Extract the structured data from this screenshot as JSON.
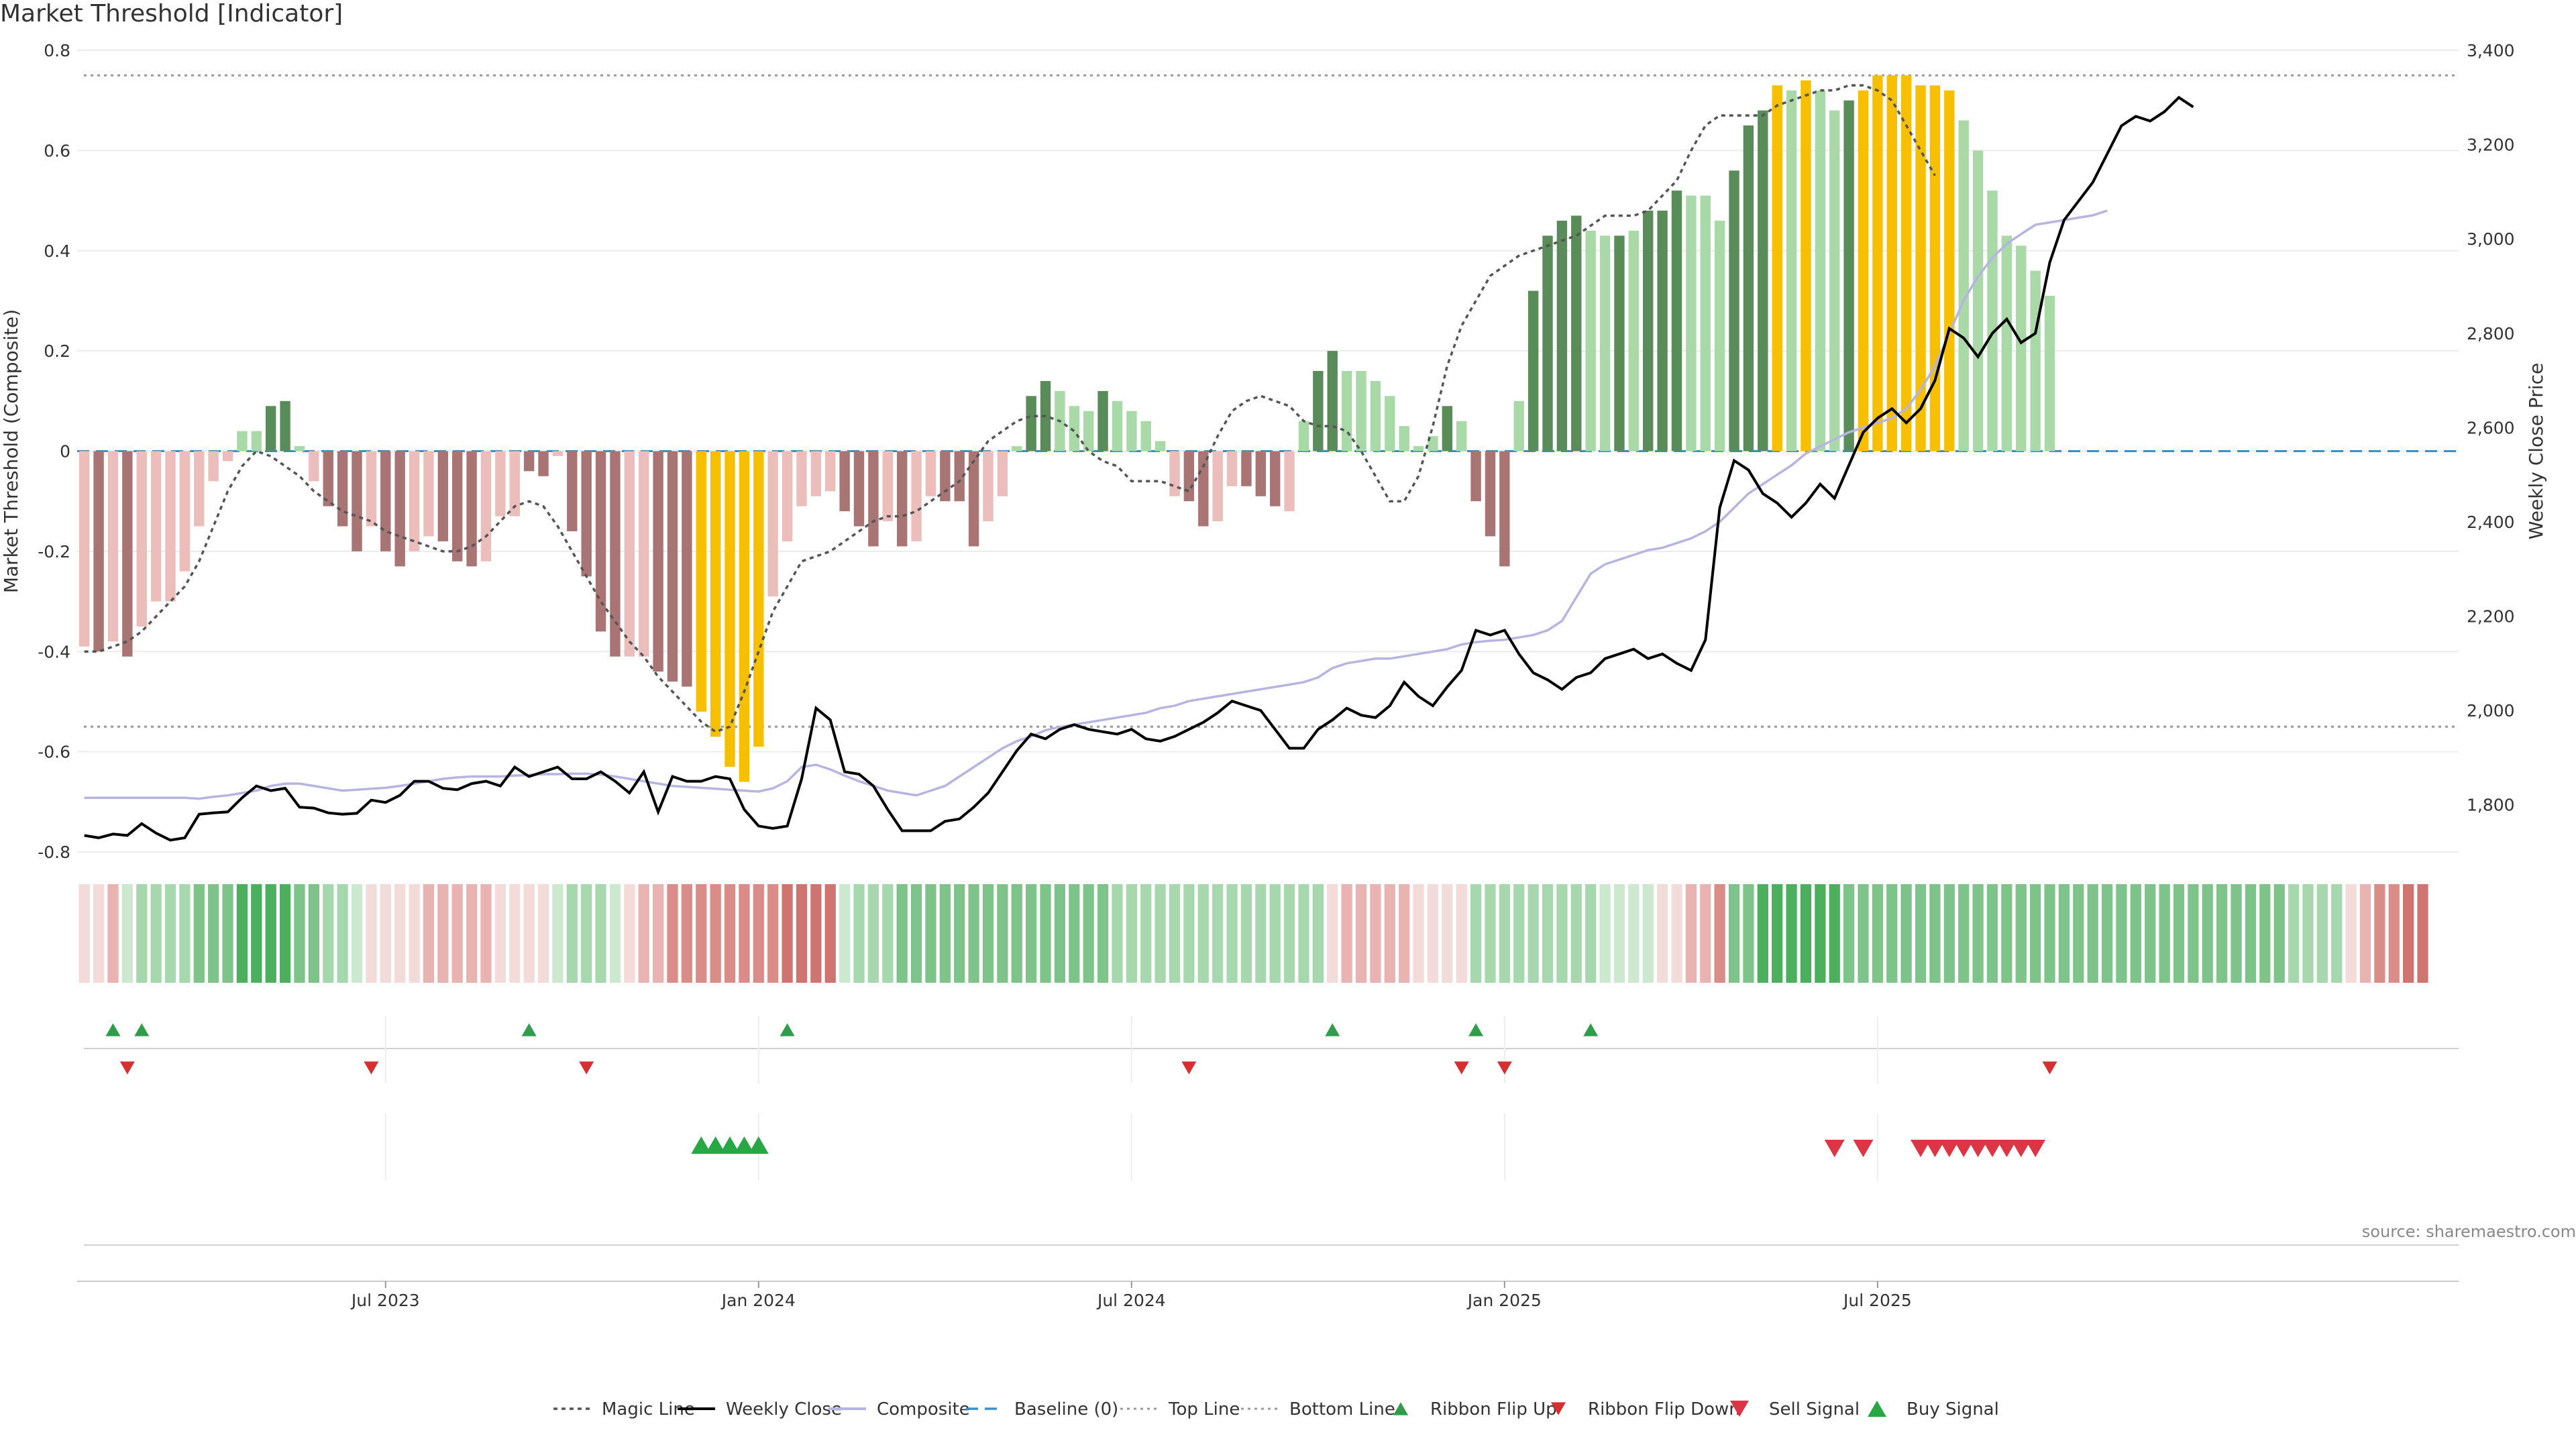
{
  "title": "Market Threshold [Indicator]",
  "source": "source: sharemaestro.com",
  "colors": {
    "strong_green": "#5a8c5a",
    "light_green": "#a9d9a6",
    "strong_red": "#a87474",
    "light_red": "#ecbebb",
    "gold": "#f6c000",
    "weekly_close": "#000000",
    "composite": "#b8b4e2",
    "magic": "#555555",
    "baseline": "#3b8fc4",
    "guide": "#999999",
    "up_marker": "#2e9e4a",
    "down_marker": "#d62f2f",
    "sell_marker": "#dc3545",
    "buy_marker": "#28a745"
  },
  "chart_data": {
    "type": "bar",
    "title": "Market Threshold [Indicator]",
    "ylabel": "Market Threshold (Composite)",
    "y2label": "Weekly Close Price",
    "ylim": [
      -0.8,
      0.8
    ],
    "y2lim": [
      1700,
      3400
    ],
    "y_ticks": [
      "0.8",
      "0.6",
      "0.4",
      "0.2",
      "0",
      "-0.2",
      "-0.4",
      "-0.6",
      "-0.8"
    ],
    "y2_ticks": [
      "3,400",
      "3,200",
      "3,000",
      "2,800",
      "2,600",
      "2,400",
      "2,200",
      "2,000",
      "1,800"
    ],
    "x_ticks": [
      {
        "label": "Jul 2023",
        "week": 21
      },
      {
        "label": "Jan 2024",
        "week": 47
      },
      {
        "label": "Jul 2024",
        "week": 73
      },
      {
        "label": "Jan 2025",
        "week": 99
      },
      {
        "label": "Jul 2025",
        "week": 125
      }
    ],
    "start_week": 0,
    "top_line": 0.75,
    "bottom_line": -0.55,
    "baseline": 0,
    "bars": [
      -0.39,
      -0.4,
      -0.38,
      -0.41,
      -0.35,
      -0.3,
      -0.3,
      -0.24,
      -0.15,
      -0.06,
      -0.02,
      0.04,
      0.04,
      0.09,
      0.1,
      0.01,
      -0.06,
      -0.11,
      -0.15,
      -0.2,
      -0.15,
      -0.2,
      -0.23,
      -0.2,
      -0.17,
      -0.18,
      -0.22,
      -0.23,
      -0.22,
      -0.13,
      -0.13,
      -0.04,
      -0.05,
      -0.01,
      -0.16,
      -0.25,
      -0.36,
      -0.41,
      -0.41,
      -0.41,
      -0.44,
      -0.46,
      -0.47,
      -0.52,
      -0.57,
      -0.63,
      -0.66,
      -0.59,
      -0.29,
      -0.18,
      -0.11,
      -0.09,
      -0.08,
      -0.12,
      -0.15,
      -0.19,
      -0.14,
      -0.19,
      -0.18,
      -0.09,
      -0.1,
      -0.1,
      -0.19,
      -0.14,
      -0.09,
      0.01,
      0.11,
      0.14,
      0.12,
      0.09,
      0.08,
      0.12,
      0.1,
      0.08,
      0.06,
      0.02,
      -0.09,
      -0.1,
      -0.15,
      -0.14,
      -0.07,
      -0.07,
      -0.09,
      -0.11,
      -0.12,
      0.06,
      0.16,
      0.2,
      0.16,
      0.16,
      0.14,
      0.11,
      0.05,
      0.01,
      0.03,
      0.09,
      0.06,
      -0.1,
      -0.17,
      -0.23,
      0.1,
      0.32,
      0.43,
      0.46,
      0.47,
      0.44,
      0.43,
      0.43,
      0.44,
      0.48,
      0.48,
      0.52,
      0.51,
      0.51,
      0.46,
      0.56,
      0.65,
      0.68,
      0.73,
      0.72,
      0.74,
      0.72,
      0.68,
      0.7,
      0.72,
      0.75,
      0.75,
      0.75,
      0.73,
      0.73,
      0.72,
      0.66,
      0.6,
      0.52,
      0.43,
      0.41,
      0.36,
      0.31
    ],
    "bar_colors": [
      "light_red",
      "strong_red",
      "light_red",
      "strong_red",
      "light_red",
      "light_red",
      "light_red",
      "light_red",
      "light_red",
      "light_red",
      "light_red",
      "light_green",
      "light_green",
      "strong_green",
      "strong_green",
      "light_green",
      "light_red",
      "strong_red",
      "strong_red",
      "strong_red",
      "light_red",
      "strong_red",
      "strong_red",
      "light_red",
      "light_red",
      "strong_red",
      "strong_red",
      "strong_red",
      "light_red",
      "light_red",
      "light_red",
      "strong_red",
      "strong_red",
      "light_red",
      "strong_red",
      "strong_red",
      "strong_red",
      "strong_red",
      "light_red",
      "light_red",
      "strong_red",
      "strong_red",
      "strong_red",
      "gold",
      "gold",
      "gold",
      "gold",
      "gold",
      "light_red",
      "light_red",
      "light_red",
      "light_red",
      "light_red",
      "strong_red",
      "strong_red",
      "strong_red",
      "light_red",
      "strong_red",
      "light_red",
      "light_red",
      "strong_red",
      "strong_red",
      "strong_red",
      "light_red",
      "light_red",
      "light_green",
      "strong_green",
      "strong_green",
      "light_green",
      "light_green",
      "light_green",
      "strong_green",
      "light_green",
      "light_green",
      "light_green",
      "light_green",
      "light_red",
      "strong_red",
      "strong_red",
      "light_red",
      "light_red",
      "strong_red",
      "strong_red",
      "strong_red",
      "light_red",
      "light_green",
      "strong_green",
      "strong_green",
      "light_green",
      "light_green",
      "light_green",
      "light_green",
      "light_green",
      "light_green",
      "light_green",
      "strong_green",
      "light_green",
      "strong_red",
      "strong_red",
      "strong_red",
      "light_green",
      "strong_green",
      "strong_green",
      "strong_green",
      "strong_green",
      "light_green",
      "light_green",
      "strong_green",
      "light_green",
      "strong_green",
      "strong_green",
      "strong_green",
      "light_green",
      "light_green",
      "light_green",
      "strong_green",
      "strong_green",
      "strong_green",
      "gold",
      "light_green",
      "gold",
      "light_green",
      "light_green",
      "strong_green",
      "gold",
      "gold",
      "gold",
      "gold",
      "gold",
      "gold",
      "gold",
      "light_green",
      "light_green",
      "light_green",
      "light_green",
      "light_green",
      "light_green",
      "light_green"
    ],
    "magic_line": [
      -0.4,
      -0.4,
      -0.39,
      -0.38,
      -0.36,
      -0.33,
      -0.3,
      -0.27,
      -0.22,
      -0.15,
      -0.08,
      -0.03,
      0.0,
      -0.01,
      -0.03,
      -0.05,
      -0.08,
      -0.1,
      -0.12,
      -0.13,
      -0.14,
      -0.16,
      -0.17,
      -0.18,
      -0.19,
      -0.2,
      -0.2,
      -0.19,
      -0.17,
      -0.14,
      -0.11,
      -0.1,
      -0.11,
      -0.15,
      -0.2,
      -0.25,
      -0.3,
      -0.34,
      -0.38,
      -0.41,
      -0.45,
      -0.48,
      -0.51,
      -0.54,
      -0.56,
      -0.55,
      -0.48,
      -0.4,
      -0.32,
      -0.27,
      -0.22,
      -0.21,
      -0.2,
      -0.18,
      -0.16,
      -0.14,
      -0.13,
      -0.13,
      -0.12,
      -0.1,
      -0.08,
      -0.06,
      -0.02,
      0.02,
      0.04,
      0.06,
      0.07,
      0.07,
      0.06,
      0.04,
      0.0,
      -0.02,
      -0.03,
      -0.06,
      -0.06,
      -0.06,
      -0.07,
      -0.08,
      -0.03,
      0.03,
      0.08,
      0.1,
      0.11,
      0.1,
      0.09,
      0.06,
      0.05,
      0.05,
      0.04,
      0.0,
      -0.05,
      -0.1,
      -0.1,
      -0.05,
      0.05,
      0.17,
      0.25,
      0.3,
      0.35,
      0.37,
      0.39,
      0.4,
      0.41,
      0.42,
      0.43,
      0.45,
      0.47,
      0.47,
      0.47,
      0.48,
      0.51,
      0.54,
      0.6,
      0.65,
      0.67,
      0.67,
      0.67,
      0.67,
      0.69,
      0.7,
      0.71,
      0.72,
      0.72,
      0.73,
      0.73,
      0.72,
      0.7,
      0.65,
      0.6,
      0.55
    ],
    "weekly_close": [
      1735,
      1730,
      1738,
      1735,
      1760,
      1740,
      1725,
      1730,
      1780,
      1783,
      1785,
      1815,
      1840,
      1830,
      1835,
      1795,
      1793,
      1783,
      1780,
      1782,
      1810,
      1805,
      1820,
      1850,
      1850,
      1835,
      1832,
      1845,
      1850,
      1840,
      1880,
      1860,
      1870,
      1880,
      1855,
      1855,
      1870,
      1850,
      1825,
      1870,
      1785,
      1860,
      1850,
      1850,
      1860,
      1855,
      1790,
      1755,
      1750,
      1755,
      1855,
      2005,
      1980,
      1870,
      1865,
      1840,
      1790,
      1745,
      1745,
      1745,
      1765,
      1770,
      1795,
      1825,
      1870,
      1915,
      1950,
      1940,
      1960,
      1970,
      1960,
      1955,
      1950,
      1960,
      1940,
      1935,
      1945,
      1960,
      1975,
      1995,
      2020,
      2010,
      2000,
      1960,
      1920,
      1920,
      1960,
      1980,
      2005,
      1990,
      1985,
      2010,
      2060,
      2030,
      2010,
      2050,
      2085,
      2170,
      2160,
      2170,
      2120,
      2080,
      2065,
      2045,
      2070,
      2080,
      2110,
      2120,
      2130,
      2110,
      2120,
      2100,
      2085,
      2150,
      2430,
      2530,
      2510,
      2460,
      2440,
      2410,
      2440,
      2480,
      2450,
      2520,
      2590,
      2620,
      2640,
      2610,
      2640,
      2700,
      2810,
      2790,
      2750,
      2800,
      2830,
      2780,
      2800,
      2950,
      3040,
      3080,
      3120,
      3180,
      3240,
      3260,
      3250,
      3270,
      3300,
      3280
    ],
    "composite_line": [
      1815,
      1815,
      1815,
      1815,
      1815,
      1815,
      1815,
      1815,
      1813,
      1817,
      1820,
      1825,
      1830,
      1840,
      1845,
      1845,
      1840,
      1835,
      1830,
      1832,
      1834,
      1836,
      1840,
      1845,
      1850,
      1855,
      1858,
      1860,
      1860,
      1860,
      1862,
      1863,
      1865,
      1865,
      1866,
      1866,
      1864,
      1860,
      1855,
      1850,
      1845,
      1840,
      1838,
      1836,
      1834,
      1832,
      1830,
      1828,
      1835,
      1850,
      1880,
      1885,
      1875,
      1862,
      1850,
      1840,
      1830,
      1825,
      1820,
      1830,
      1840,
      1860,
      1880,
      1900,
      1920,
      1935,
      1945,
      1958,
      1965,
      1970,
      1975,
      1980,
      1985,
      1990,
      1995,
      2005,
      2010,
      2020,
      2025,
      2030,
      2035,
      2040,
      2045,
      2050,
      2055,
      2060,
      2070,
      2090,
      2100,
      2105,
      2110,
      2110,
      2115,
      2120,
      2125,
      2130,
      2140,
      2145,
      2148,
      2150,
      2155,
      2160,
      2170,
      2190,
      2240,
      2290,
      2310,
      2320,
      2330,
      2340,
      2345,
      2355,
      2365,
      2380,
      2400,
      2430,
      2460,
      2480,
      2500,
      2520,
      2545,
      2560,
      2575,
      2590,
      2600,
      2610,
      2620,
      2640,
      2680,
      2730,
      2800,
      2870,
      2920,
      2960,
      2990,
      3010,
      3030,
      3035,
      3040,
      3045,
      3050,
      3060
    ],
    "ribbon": [
      "r1",
      "r1",
      "r2",
      "g1",
      "g2",
      "g2",
      "g2",
      "g2",
      "g3",
      "g3",
      "g3",
      "g4",
      "g4",
      "g4",
      "g4",
      "g3",
      "g3",
      "g2",
      "g2",
      "g1",
      "r1",
      "r1",
      "r1",
      "r1",
      "r2",
      "r2",
      "r2",
      "r2",
      "r2",
      "r1",
      "r1",
      "r1",
      "r1",
      "g1",
      "g2",
      "g2",
      "g2",
      "g1",
      "r1",
      "r2",
      "r2",
      "r3",
      "r3",
      "r3",
      "r3",
      "r3",
      "r3",
      "r3",
      "r3",
      "r4",
      "r4",
      "r4",
      "r4",
      "g1",
      "g2",
      "g2",
      "g2",
      "g3",
      "g3",
      "g3",
      "g3",
      "g3",
      "g3",
      "g3",
      "g3",
      "g3",
      "g3",
      "g3",
      "g3",
      "g3",
      "g3",
      "g3",
      "g2",
      "g2",
      "g2",
      "g2",
      "g2",
      "g2",
      "g2",
      "g2",
      "g2",
      "g2",
      "g2",
      "g2",
      "g2",
      "g2",
      "g2",
      "r1",
      "r2",
      "r2",
      "r2",
      "r2",
      "r2",
      "r1",
      "r1",
      "r1",
      "r1",
      "g2",
      "g2",
      "g2",
      "g2",
      "g2",
      "g2",
      "g2",
      "g2",
      "g2",
      "g1",
      "g1",
      "g1",
      "g1",
      "r1",
      "r1",
      "r2",
      "r2",
      "r3",
      "g3",
      "g3",
      "g4",
      "g4",
      "g4",
      "g4",
      "g4",
      "g4",
      "g3",
      "g3",
      "g3",
      "g3",
      "g3",
      "g3",
      "g3",
      "g3",
      "g3",
      "g3",
      "g3",
      "g3",
      "g3",
      "g3",
      "g3",
      "g3",
      "g3",
      "g3",
      "g3",
      "g3",
      "g3",
      "g3",
      "g3",
      "g3",
      "g3",
      "g3",
      "g3",
      "g3",
      "g3",
      "g3",
      "g3",
      "g2",
      "g2",
      "g2",
      "g2",
      "r1",
      "r2",
      "r3",
      "r3",
      "r4",
      "r4"
    ],
    "ribbon_flip_up_weeks": [
      2,
      4,
      31,
      49,
      87,
      97,
      105
    ],
    "ribbon_flip_down_weeks": [
      3,
      20,
      35,
      77,
      96,
      99,
      137
    ],
    "buy_signal_weeks": [
      43,
      44,
      45,
      46,
      47
    ],
    "sell_signal_weeks": [
      122,
      124,
      128,
      129,
      130,
      131,
      132,
      133,
      134,
      135,
      136
    ],
    "legend": [
      {
        "label": "Magic Line",
        "kind": "dotted"
      },
      {
        "label": "Weekly Close",
        "kind": "solid"
      },
      {
        "label": "Composite",
        "kind": "composite"
      },
      {
        "label": "Baseline (0)",
        "kind": "dashed"
      },
      {
        "label": "Top Line",
        "kind": "dotted-light"
      },
      {
        "label": "Bottom Line",
        "kind": "dotted-light"
      },
      {
        "label": "Ribbon Flip Up",
        "kind": "up"
      },
      {
        "label": "Ribbon Flip Down",
        "kind": "down"
      },
      {
        "label": "Sell Signal",
        "kind": "sell"
      },
      {
        "label": "Buy Signal",
        "kind": "buy"
      }
    ],
    "legend_position": "bottom-center"
  }
}
